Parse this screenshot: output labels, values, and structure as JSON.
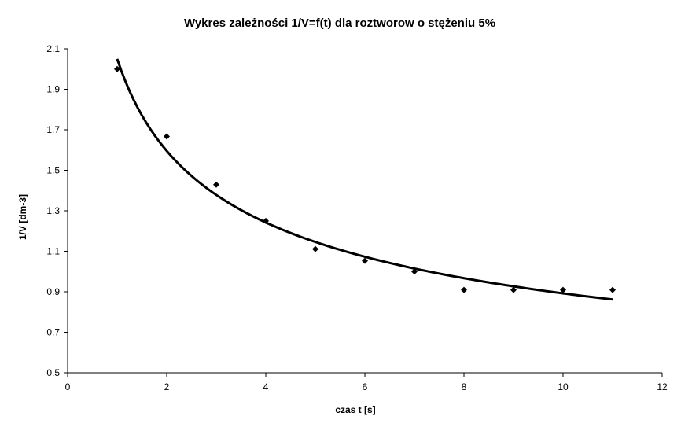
{
  "chart_data": {
    "type": "scatter",
    "title": "Wykres zależności 1/V=f(t) dla roztworow o stężeniu 5%",
    "xlabel": "czas t [s]",
    "ylabel": "1/V [dm-3]",
    "xlim": [
      0,
      12
    ],
    "ylim": [
      0.5,
      2.1
    ],
    "xticks": [
      "0",
      "2",
      "4",
      "6",
      "8",
      "10",
      "12"
    ],
    "yticks": [
      "0.5",
      "0.7",
      "0.9",
      "1.1",
      "1.3",
      "1.5",
      "1.7",
      "1.9",
      "2.1"
    ],
    "grid": false,
    "legend": "none",
    "series": [
      {
        "x": [
          1,
          2,
          3,
          4,
          5,
          6,
          7,
          8,
          9,
          10,
          11
        ],
        "y": [
          2.0,
          1.667,
          1.429,
          1.25,
          1.111,
          1.053,
          1.0,
          0.909,
          0.909,
          0.909,
          0.909
        ],
        "marker": "diamond",
        "color": "#000000"
      }
    ],
    "trendline": {
      "type": "power",
      "x_range": [
        1,
        11
      ],
      "y_at_start": 2.05,
      "y_at_end": 0.862,
      "color": "#000000"
    }
  }
}
